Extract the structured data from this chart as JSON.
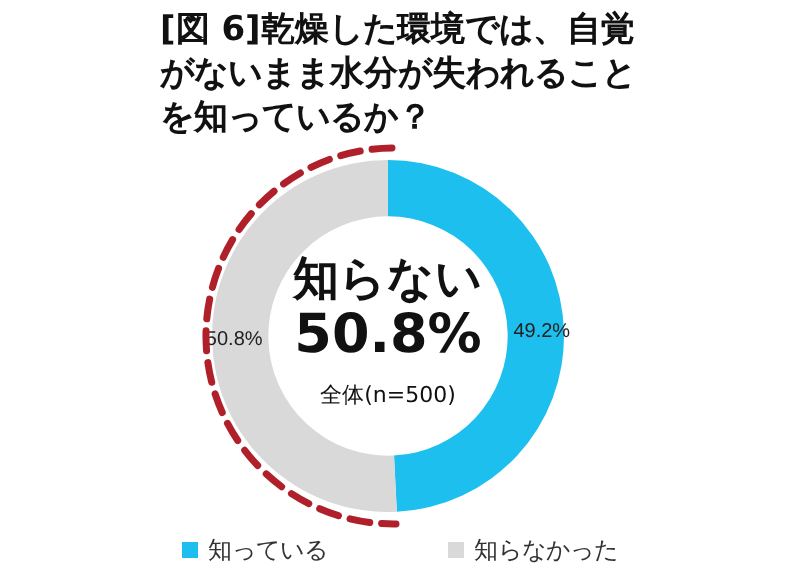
{
  "chart_data": {
    "type": "donut",
    "title": "[図 6]乾燥した環境では、自覚がないまま水分が失われることを知っているか？",
    "categories": [
      "知っている",
      "知らなかった"
    ],
    "values": [
      49.2,
      50.8
    ],
    "value_labels": [
      "49.2%",
      "50.8%"
    ],
    "colors": [
      "#1dbfee",
      "#d9d9d9"
    ],
    "annotations": [
      "知らない",
      "50.8%",
      "全体(n=500)"
    ],
    "legend": "bottom"
  }
}
